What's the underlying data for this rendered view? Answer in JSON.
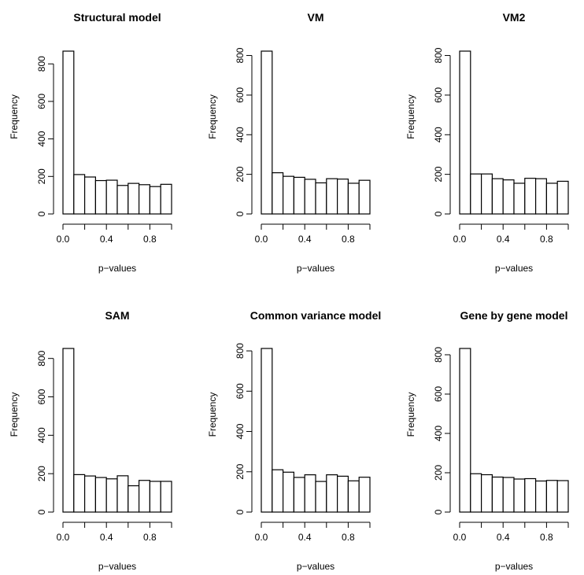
{
  "chart_data": [
    {
      "type": "bar",
      "title": "Structural model",
      "xlabel": "p−values",
      "ylabel": "Frequency",
      "bin_edges": [
        0,
        0.1,
        0.2,
        0.3,
        0.4,
        0.5,
        0.6,
        0.7,
        0.8,
        0.9,
        1.0
      ],
      "values": [
        868,
        210,
        197,
        178,
        180,
        152,
        163,
        156,
        146,
        158
      ],
      "xticks": [
        "0.0",
        "0.4",
        "0.8"
      ],
      "yticks": [
        "0",
        "200",
        "400",
        "600",
        "800"
      ],
      "ylim": [
        0,
        868
      ]
    },
    {
      "type": "bar",
      "title": "VM",
      "xlabel": "p−values",
      "ylabel": "Frequency",
      "bin_edges": [
        0,
        0.1,
        0.2,
        0.3,
        0.4,
        0.5,
        0.6,
        0.7,
        0.8,
        0.9,
        1.0
      ],
      "values": [
        822,
        208,
        190,
        185,
        175,
        157,
        178,
        176,
        155,
        170
      ],
      "xticks": [
        "0.0",
        "0.4",
        "0.8"
      ],
      "yticks": [
        "0",
        "200",
        "400",
        "600",
        "800"
      ],
      "ylim": [
        0,
        822
      ]
    },
    {
      "type": "bar",
      "title": "VM2",
      "xlabel": "p−values",
      "ylabel": "Frequency",
      "bin_edges": [
        0,
        0.1,
        0.2,
        0.3,
        0.4,
        0.5,
        0.6,
        0.7,
        0.8,
        0.9,
        1.0
      ],
      "values": [
        822,
        202,
        202,
        178,
        172,
        155,
        180,
        178,
        155,
        165
      ],
      "xticks": [
        "0.0",
        "0.4",
        "0.8"
      ],
      "yticks": [
        "0",
        "200",
        "400",
        "600",
        "800"
      ],
      "ylim": [
        0,
        822
      ]
    },
    {
      "type": "bar",
      "title": "SAM",
      "xlabel": "p−values",
      "ylabel": "Frequency",
      "bin_edges": [
        0,
        0.1,
        0.2,
        0.3,
        0.4,
        0.5,
        0.6,
        0.7,
        0.8,
        0.9,
        1.0
      ],
      "values": [
        852,
        195,
        188,
        180,
        173,
        189,
        137,
        165,
        160,
        160
      ],
      "xticks": [
        "0.0",
        "0.4",
        "0.8"
      ],
      "yticks": [
        "0",
        "200",
        "400",
        "600",
        "800"
      ],
      "ylim": [
        0,
        852
      ]
    },
    {
      "type": "bar",
      "title": "Common variance model",
      "xlabel": "p−values",
      "ylabel": "Frequency",
      "bin_edges": [
        0,
        0.1,
        0.2,
        0.3,
        0.4,
        0.5,
        0.6,
        0.7,
        0.8,
        0.9,
        1.0
      ],
      "values": [
        812,
        210,
        198,
        172,
        185,
        152,
        185,
        178,
        155,
        173
      ],
      "xticks": [
        "0.0",
        "0.4",
        "0.8"
      ],
      "yticks": [
        "0",
        "200",
        "400",
        "600",
        "800"
      ],
      "ylim": [
        0,
        812
      ]
    },
    {
      "type": "bar",
      "title": "Gene by gene model",
      "xlabel": "p−values",
      "ylabel": "Frequency",
      "bin_edges": [
        0,
        0.1,
        0.2,
        0.3,
        0.4,
        0.5,
        0.6,
        0.7,
        0.8,
        0.9,
        1.0
      ],
      "values": [
        832,
        195,
        190,
        178,
        176,
        168,
        170,
        158,
        161,
        160
      ],
      "xticks": [
        "0.0",
        "0.4",
        "0.8"
      ],
      "yticks": [
        "0",
        "200",
        "400",
        "600",
        "800"
      ],
      "ylim": [
        0,
        832
      ]
    }
  ]
}
